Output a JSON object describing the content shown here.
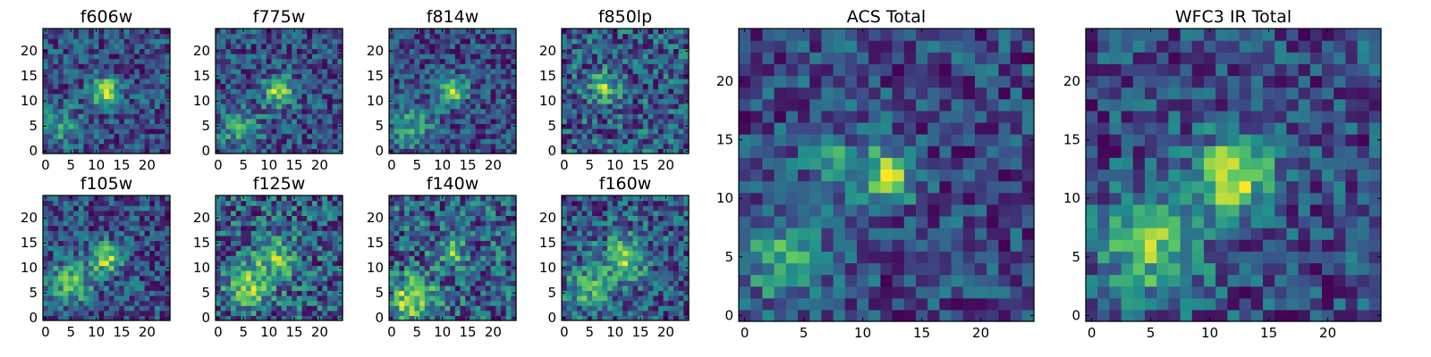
{
  "figure": {
    "description_colormap": "viridis",
    "colormap_stops": [
      "#440154",
      "#3b528b",
      "#21918c",
      "#5ec962",
      "#fde725"
    ]
  },
  "chart_data": [
    {
      "type": "heatmap",
      "title": "f606w",
      "grid_size": 25,
      "xlim": [
        -0.5,
        24.5
      ],
      "ylim": [
        -0.5,
        24.5
      ],
      "xticks": [
        0,
        5,
        10,
        15,
        20
      ],
      "yticks": [
        0,
        5,
        10,
        15,
        20
      ],
      "blobs": [
        {
          "x": 12,
          "y": 12,
          "amp": 0.9,
          "sigma": 2
        },
        {
          "x": 3,
          "y": 5,
          "amp": 0.4,
          "sigma": 3
        }
      ],
      "noise": 0.33,
      "seed": 11
    },
    {
      "type": "heatmap",
      "title": "f775w",
      "grid_size": 25,
      "xlim": [
        -0.5,
        24.5
      ],
      "ylim": [
        -0.5,
        24.5
      ],
      "xticks": [
        0,
        5,
        10,
        15,
        20
      ],
      "yticks": [
        0,
        5,
        10,
        15,
        20
      ],
      "blobs": [
        {
          "x": 12,
          "y": 12,
          "amp": 0.8,
          "sigma": 2
        },
        {
          "x": 4,
          "y": 5,
          "amp": 0.4,
          "sigma": 3
        }
      ],
      "noise": 0.33,
      "seed": 23
    },
    {
      "type": "heatmap",
      "title": "f814w",
      "grid_size": 25,
      "xlim": [
        -0.5,
        24.5
      ],
      "ylim": [
        -0.5,
        24.5
      ],
      "xticks": [
        0,
        5,
        10,
        15,
        20
      ],
      "yticks": [
        0,
        5,
        10,
        15,
        20
      ],
      "blobs": [
        {
          "x": 12,
          "y": 12,
          "amp": 0.8,
          "sigma": 2
        },
        {
          "x": 4,
          "y": 5,
          "amp": 0.5,
          "sigma": 3
        }
      ],
      "noise": 0.33,
      "seed": 37
    },
    {
      "type": "heatmap",
      "title": "f850lp",
      "grid_size": 25,
      "xlim": [
        -0.5,
        24.5
      ],
      "ylim": [
        -0.5,
        24.5
      ],
      "xticks": [
        0,
        5,
        10,
        15,
        20
      ],
      "yticks": [
        0,
        5,
        10,
        15,
        20
      ],
      "blobs": [
        {
          "x": 8,
          "y": 13,
          "amp": 0.6,
          "sigma": 2
        }
      ],
      "noise": 0.38,
      "seed": 41
    },
    {
      "type": "heatmap",
      "title": "f105w",
      "grid_size": 25,
      "xlim": [
        -0.5,
        24.5
      ],
      "ylim": [
        -0.5,
        24.5
      ],
      "xticks": [
        0,
        5,
        10,
        15,
        20
      ],
      "yticks": [
        0,
        5,
        10,
        15,
        20
      ],
      "blobs": [
        {
          "x": 12,
          "y": 12,
          "amp": 0.7,
          "sigma": 2
        },
        {
          "x": 5,
          "y": 7,
          "amp": 0.5,
          "sigma": 3
        }
      ],
      "noise": 0.3,
      "seed": 53
    },
    {
      "type": "heatmap",
      "title": "f125w",
      "grid_size": 25,
      "xlim": [
        -0.5,
        24.5
      ],
      "ylim": [
        -0.5,
        24.5
      ],
      "xticks": [
        0,
        5,
        10,
        15,
        20
      ],
      "yticks": [
        0,
        5,
        10,
        15,
        20
      ],
      "blobs": [
        {
          "x": 11,
          "y": 12,
          "amp": 0.5,
          "sigma": 3
        },
        {
          "x": 6,
          "y": 6,
          "amp": 0.5,
          "sigma": 3
        }
      ],
      "noise": 0.38,
      "seed": 67
    },
    {
      "type": "heatmap",
      "title": "f140w",
      "grid_size": 25,
      "xlim": [
        -0.5,
        24.5
      ],
      "ylim": [
        -0.5,
        24.5
      ],
      "xticks": [
        0,
        5,
        10,
        15,
        20
      ],
      "yticks": [
        0,
        5,
        10,
        15,
        20
      ],
      "blobs": [
        {
          "x": 4,
          "y": 4,
          "amp": 0.7,
          "sigma": 3
        },
        {
          "x": 12,
          "y": 13,
          "amp": 0.4,
          "sigma": 2
        }
      ],
      "noise": 0.36,
      "seed": 79
    },
    {
      "type": "heatmap",
      "title": "f160w",
      "grid_size": 25,
      "xlim": [
        -0.5,
        24.5
      ],
      "ylim": [
        -0.5,
        24.5
      ],
      "xticks": [
        0,
        5,
        10,
        15,
        20
      ],
      "yticks": [
        0,
        5,
        10,
        15,
        20
      ],
      "blobs": [
        {
          "x": 12,
          "y": 12,
          "amp": 0.6,
          "sigma": 3
        },
        {
          "x": 5,
          "y": 6,
          "amp": 0.5,
          "sigma": 3
        }
      ],
      "noise": 0.36,
      "seed": 89
    },
    {
      "type": "heatmap",
      "title": "ACS Total",
      "grid_size": 25,
      "xlim": [
        -0.5,
        24.5
      ],
      "ylim": [
        -0.5,
        24.5
      ],
      "xticks": [
        0,
        5,
        10,
        15,
        20
      ],
      "yticks": [
        0,
        5,
        10,
        15,
        20
      ],
      "blobs": [
        {
          "x": 12,
          "y": 12,
          "amp": 0.9,
          "sigma": 1.6
        },
        {
          "x": 3,
          "y": 5,
          "amp": 0.5,
          "sigma": 2.5
        },
        {
          "x": 7,
          "y": 14,
          "amp": 0.4,
          "sigma": 1.5
        }
      ],
      "noise": 0.3,
      "seed": 101
    },
    {
      "type": "heatmap",
      "title": "WFC3 IR Total",
      "grid_size": 25,
      "xlim": [
        -0.5,
        24.5
      ],
      "ylim": [
        -0.5,
        24.5
      ],
      "xticks": [
        0,
        5,
        10,
        15,
        20
      ],
      "yticks": [
        0,
        5,
        10,
        15,
        20
      ],
      "blobs": [
        {
          "x": 12,
          "y": 12,
          "amp": 0.8,
          "sigma": 2.2
        },
        {
          "x": 5,
          "y": 6,
          "amp": 0.6,
          "sigma": 3
        }
      ],
      "noise": 0.27,
      "seed": 113
    }
  ]
}
